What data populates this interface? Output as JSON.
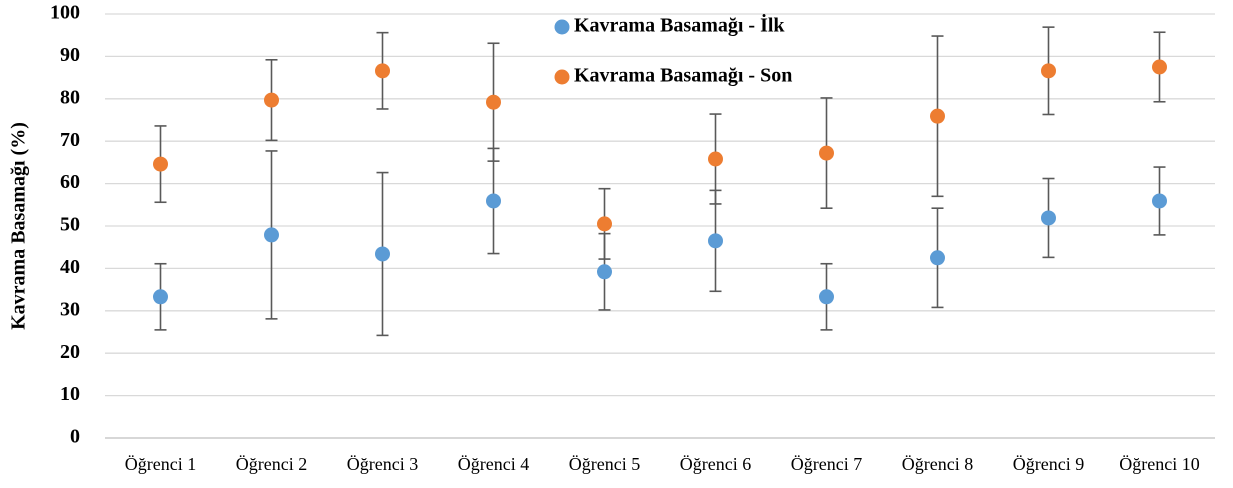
{
  "chart_data": {
    "type": "scatter",
    "y_label": "Kavrama Basamağı (%)",
    "categories": [
      "Öğrenci 1",
      "Öğrenci 2",
      "Öğrenci 3",
      "Öğrenci 4",
      "Öğrenci 5",
      "Öğrenci 6",
      "Öğrenci 7",
      "Öğrenci 8",
      "Öğrenci 9",
      "Öğrenci 10"
    ],
    "series": [
      {
        "name": "Kavrama Basamağı - İlk",
        "color": "#5b9bd5",
        "values": [
          33.3,
          47.9,
          43.4,
          55.9,
          39.2,
          46.5,
          33.3,
          42.5,
          51.9,
          55.9
        ],
        "errors": [
          7.8,
          19.8,
          19.2,
          12.4,
          9.0,
          11.9,
          7.8,
          11.7,
          9.3,
          8.0
        ]
      },
      {
        "name": "Kavrama Basamağı - Son",
        "color": "#ed7d31",
        "values": [
          64.6,
          79.7,
          86.6,
          79.2,
          50.5,
          65.8,
          67.2,
          75.9,
          86.6,
          87.5
        ],
        "errors": [
          9.0,
          9.5,
          9.0,
          13.9,
          8.3,
          10.6,
          13.0,
          18.9,
          10.3,
          8.2
        ]
      }
    ],
    "error_color": "#595959",
    "ylim": [
      0,
      100
    ],
    "yticks": [
      0,
      10,
      20,
      30,
      40,
      50,
      60,
      70,
      80,
      90,
      100
    ],
    "grid": true,
    "legend": "top"
  }
}
